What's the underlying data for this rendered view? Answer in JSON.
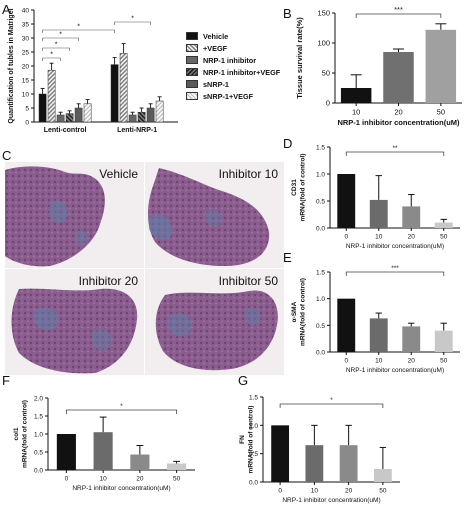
{
  "panels": {
    "A": {
      "letter": "A",
      "ylabel": "Quantification of tubles in Matrigel",
      "significance": [
        "*",
        "*",
        "*",
        "*",
        "*"
      ]
    },
    "B": {
      "letter": "B",
      "significance": "***"
    },
    "C": {
      "letter": "C",
      "images": [
        {
          "label": "Vehicle"
        },
        {
          "label": "Inhibitor 10"
        },
        {
          "label": "Inhibitor 20"
        },
        {
          "label": "Inhibitor 50"
        }
      ]
    },
    "D": {
      "letter": "D",
      "significance": "**"
    },
    "E": {
      "letter": "E",
      "significance": "***"
    },
    "F": {
      "letter": "F",
      "significance": "*"
    },
    "G": {
      "letter": "G",
      "significance": "*"
    }
  },
  "legend": [
    {
      "label": "Vehicle",
      "color": "#111111"
    },
    {
      "label": "+VEGF",
      "color": "#bdbdbd"
    },
    {
      "label": "NRP-1 inhibitor",
      "color": "#666666"
    },
    {
      "label": "NRP-1 inhibitor+VEGF",
      "color": "#444444"
    },
    {
      "label": "sNRP-1",
      "color": "#5a5a5a"
    },
    {
      "label": "sNRP-1+VEGF",
      "color": "#dddddd"
    }
  ],
  "chart_data": [
    {
      "panel": "A",
      "type": "bar",
      "categories": [
        "Lenti-control",
        "Lenti-NRP-1"
      ],
      "series": [
        {
          "name": "Vehicle",
          "values": [
            10,
            20.5
          ],
          "errors": [
            2,
            2.5
          ]
        },
        {
          "name": "+VEGF",
          "values": [
            18.5,
            24.5
          ],
          "errors": [
            2.5,
            3.5
          ]
        },
        {
          "name": "NRP-1 inhibitor",
          "values": [
            2.5,
            2.5
          ],
          "errors": [
            1,
            1
          ]
        },
        {
          "name": "NRP-1 inhibitor+VEGF",
          "values": [
            3,
            3.5
          ],
          "errors": [
            1,
            1.5
          ]
        },
        {
          "name": "sNRP-1",
          "values": [
            5,
            5
          ],
          "errors": [
            1.5,
            1.5
          ]
        },
        {
          "name": "sNRP-1+VEGF",
          "values": [
            6.5,
            7.5
          ],
          "errors": [
            1.5,
            1.5
          ]
        }
      ],
      "ylabel": "Quantification of tubles in Matrigel",
      "ylim": [
        0,
        40
      ],
      "yticks": [
        0,
        5,
        10,
        15,
        20,
        25,
        30,
        35,
        40
      ]
    },
    {
      "panel": "B",
      "type": "bar",
      "categories": [
        "10",
        "20",
        "50"
      ],
      "values": [
        25,
        85,
        122
      ],
      "errors": [
        22,
        5,
        10
      ],
      "colors": [
        "#111111",
        "#707070",
        "#a0a0a0"
      ],
      "xlabel": "NRP-1 inhibitor concentration(uM)",
      "ylabel": "Tissue survival rate(%)",
      "ylim": [
        0,
        150
      ],
      "yticks": [
        0,
        50,
        100,
        150
      ]
    },
    {
      "panel": "D",
      "type": "bar",
      "categories": [
        "0",
        "10",
        "20",
        "50"
      ],
      "values": [
        1.0,
        0.52,
        0.4,
        0.1
      ],
      "errors": [
        0,
        0.45,
        0.22,
        0.06
      ],
      "colors": [
        "#111111",
        "#6b6b6b",
        "#8a8a8a",
        "#c8c8c8"
      ],
      "xlabel": "NRP-1 inhibitor concentration(uM)",
      "ylabel": "CD31 mRNA(fold of control)",
      "ylim": [
        0,
        1.5
      ],
      "yticks": [
        0.0,
        0.5,
        1.0,
        1.5
      ]
    },
    {
      "panel": "E",
      "type": "bar",
      "categories": [
        "0",
        "10",
        "20",
        "50"
      ],
      "values": [
        1.0,
        0.63,
        0.48,
        0.4
      ],
      "errors": [
        0,
        0.1,
        0.06,
        0.14
      ],
      "colors": [
        "#111111",
        "#6b6b6b",
        "#8a8a8a",
        "#c8c8c8"
      ],
      "xlabel": "NRP-1 inhibitor concentration(uM)",
      "ylabel": "α-SMA mRNA(fold of control)",
      "ylim": [
        0,
        1.5
      ],
      "yticks": [
        0.0,
        0.5,
        1.0,
        1.5
      ]
    },
    {
      "panel": "F",
      "type": "bar",
      "categories": [
        "0",
        "10",
        "20",
        "50"
      ],
      "values": [
        1.0,
        1.05,
        0.43,
        0.18
      ],
      "errors": [
        0,
        0.42,
        0.25,
        0.06
      ],
      "colors": [
        "#111111",
        "#6b6b6b",
        "#8a8a8a",
        "#c8c8c8"
      ],
      "xlabel": "NRP-1 inhibitor concentration(uM)",
      "ylabel": "col1 mRNA(fold of control)",
      "ylim": [
        0,
        2.0
      ],
      "yticks": [
        0.0,
        0.5,
        1.0,
        1.5,
        2.0
      ]
    },
    {
      "panel": "G",
      "type": "bar",
      "categories": [
        "0",
        "10",
        "20",
        "50"
      ],
      "values": [
        1.0,
        0.65,
        0.65,
        0.23
      ],
      "errors": [
        0,
        0.35,
        0.35,
        0.38
      ],
      "colors": [
        "#111111",
        "#6b6b6b",
        "#8a8a8a",
        "#c8c8c8"
      ],
      "xlabel": "NRP-1 inhibitor concentration(uM)",
      "ylabel": "FN mRNA(fold of control)",
      "ylim": [
        0,
        1.5
      ],
      "yticks": [
        0.0,
        0.5,
        1.0,
        1.5
      ]
    }
  ]
}
